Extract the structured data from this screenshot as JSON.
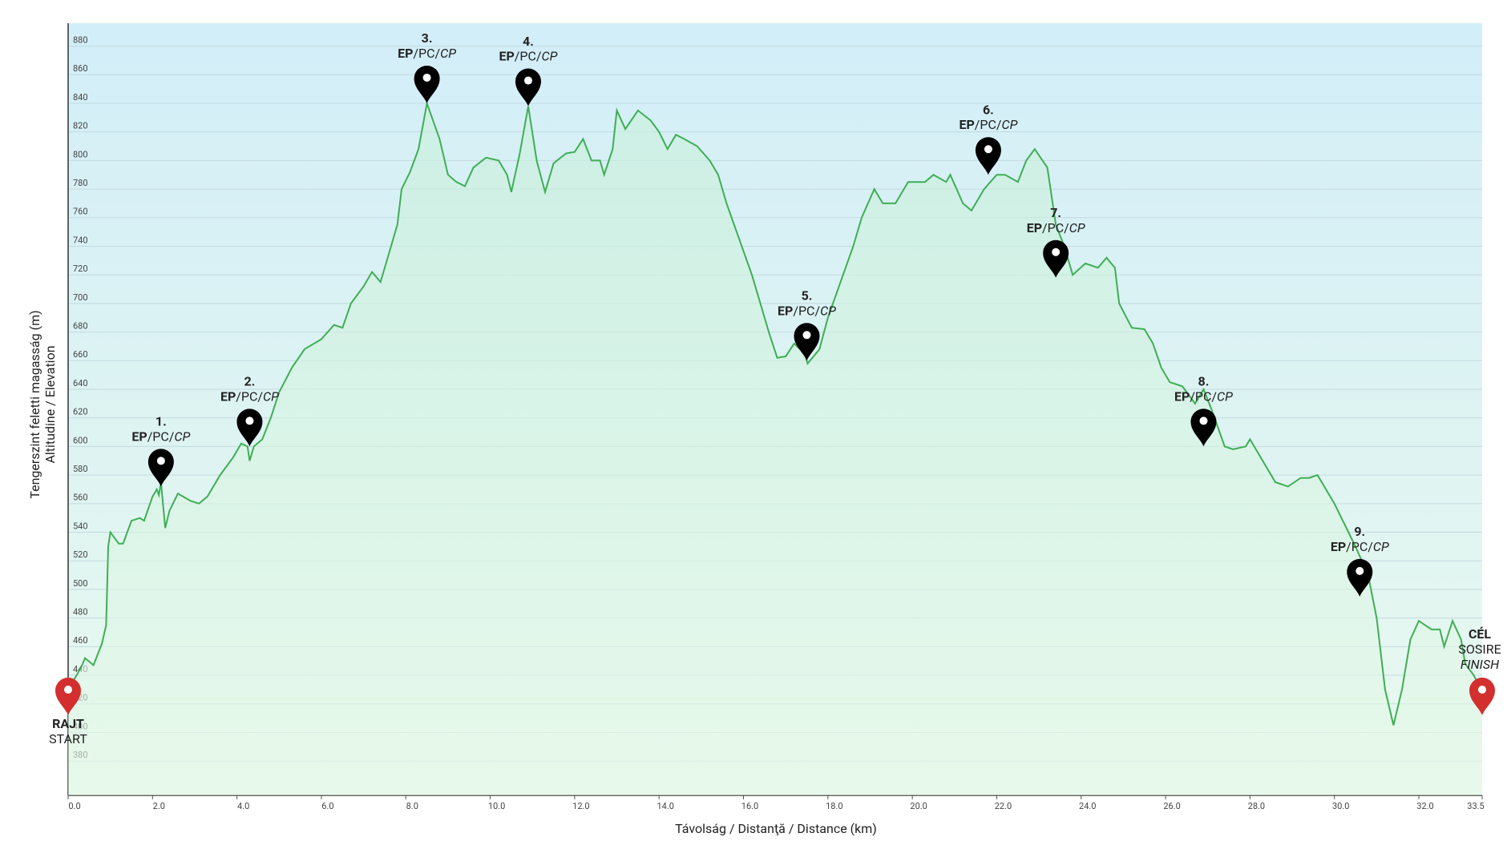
{
  "chart_data": {
    "type": "line",
    "x_label": "Távolság / Distanţă / Distance (km)",
    "y_label_1": "Tengerszint feletti magasság (m)",
    "y_label_2": "Altitudine / Elevation",
    "color": "#3fae55",
    "x": [
      0.0,
      0.3,
      0.4,
      0.6,
      0.8,
      0.9,
      0.95,
      1.0,
      1.2,
      1.3,
      1.5,
      1.7,
      1.8,
      2.0,
      2.1,
      2.15,
      2.2,
      2.3,
      2.4,
      2.6,
      2.9,
      3.1,
      3.3,
      3.6,
      3.9,
      4.1,
      4.25,
      4.3,
      4.4,
      4.6,
      4.8,
      5.0,
      5.3,
      5.6,
      6.0,
      6.3,
      6.5,
      6.7,
      7.0,
      7.2,
      7.4,
      7.6,
      7.8,
      7.9,
      8.1,
      8.3,
      8.5,
      8.8,
      9.0,
      9.2,
      9.4,
      9.6,
      9.9,
      10.2,
      10.4,
      10.5,
      10.7,
      10.9,
      11.1,
      11.3,
      11.5,
      11.8,
      12.0,
      12.2,
      12.4,
      12.6,
      12.7,
      12.9,
      13.0,
      13.2,
      13.5,
      13.8,
      14.0,
      14.2,
      14.4,
      14.6,
      14.9,
      15.2,
      15.4,
      15.6,
      15.9,
      16.2,
      16.4,
      16.6,
      16.8,
      17.0,
      17.2,
      17.45,
      17.52,
      17.8,
      18.0,
      18.3,
      18.6,
      18.8,
      19.1,
      19.3,
      19.6,
      19.9,
      20.3,
      20.5,
      20.8,
      20.9,
      21.2,
      21.4,
      21.7,
      22.0,
      22.2,
      22.5,
      22.7,
      22.9,
      23.2,
      23.4,
      23.6,
      23.8,
      24.1,
      24.4,
      24.6,
      24.8,
      24.9,
      25.2,
      25.5,
      25.7,
      25.9,
      26.1,
      26.4,
      26.7,
      26.9,
      27.1,
      27.4,
      27.6,
      27.9,
      28.0,
      28.3,
      28.6,
      28.9,
      29.2,
      29.4,
      29.6,
      29.8,
      30.0,
      30.3,
      30.5,
      30.8,
      31.0,
      31.2,
      31.4,
      31.6,
      31.8,
      32.0,
      32.3,
      32.5,
      32.6,
      32.8,
      33.0,
      33.1,
      33.3,
      33.5
    ],
    "values": [
      430,
      445,
      452,
      447,
      462,
      475,
      530,
      540,
      532,
      532,
      548,
      550,
      548,
      565,
      570,
      566,
      575,
      543,
      555,
      567,
      562,
      560,
      565,
      580,
      592,
      602,
      600,
      590,
      600,
      605,
      620,
      638,
      655,
      668,
      675,
      685,
      683,
      700,
      712,
      722,
      715,
      735,
      755,
      780,
      792,
      808,
      840,
      815,
      790,
      785,
      782,
      795,
      802,
      800,
      790,
      778,
      805,
      838,
      800,
      778,
      798,
      805,
      806,
      815,
      800,
      800,
      790,
      808,
      835,
      822,
      835,
      828,
      820,
      808,
      818,
      815,
      810,
      800,
      790,
      770,
      745,
      720,
      700,
      680,
      662,
      663,
      672,
      665,
      658,
      668,
      690,
      715,
      740,
      760,
      780,
      770,
      770,
      785,
      785,
      790,
      785,
      790,
      770,
      765,
      780,
      790,
      790,
      785,
      800,
      808,
      795,
      755,
      740,
      720,
      728,
      725,
      732,
      725,
      700,
      683,
      682,
      672,
      655,
      645,
      642,
      630,
      640,
      625,
      600,
      598,
      600,
      605,
      590,
      575,
      572,
      578,
      578,
      580,
      570,
      560,
      542,
      530,
      510,
      480,
      430,
      405,
      430,
      465,
      478,
      472,
      472,
      460,
      478,
      465,
      448,
      440,
      428
    ],
    "xlim": [
      0,
      33.5
    ],
    "ylim": [
      356,
      896
    ],
    "xticks": [
      {
        "value": 0,
        "label": "0.0"
      },
      {
        "value": 2,
        "label": "2.0"
      },
      {
        "value": 4,
        "label": "4.0"
      },
      {
        "value": 6,
        "label": "6.0"
      },
      {
        "value": 8,
        "label": "8.0"
      },
      {
        "value": 10,
        "label": "10.0"
      },
      {
        "value": 12,
        "label": "12.0"
      },
      {
        "value": 14,
        "label": "14.0"
      },
      {
        "value": 16,
        "label": "16.0"
      },
      {
        "value": 18,
        "label": "18.0"
      },
      {
        "value": 20,
        "label": "20.0"
      },
      {
        "value": 22,
        "label": "22.0"
      },
      {
        "value": 24,
        "label": "24.0"
      },
      {
        "value": 26,
        "label": "26.0"
      },
      {
        "value": 28,
        "label": "28.0"
      },
      {
        "value": 30,
        "label": "30.0"
      },
      {
        "value": 32,
        "label": "32.0"
      },
      {
        "value": 33.5,
        "label": "33.5"
      }
    ],
    "yticks": [
      380,
      400,
      420,
      440,
      460,
      480,
      500,
      520,
      540,
      560,
      580,
      600,
      620,
      640,
      660,
      680,
      700,
      720,
      740,
      760,
      780,
      800,
      820,
      840,
      860,
      880
    ],
    "grid": true,
    "checkpoint_text": {
      "ep": "EP",
      "pc": "/PC/",
      "cp": "CP"
    },
    "checkpoints": [
      {
        "label": "1.",
        "x": 2.2,
        "y": 572
      },
      {
        "label": "2.",
        "x": 4.3,
        "y": 600
      },
      {
        "label": "3.",
        "x": 8.5,
        "y": 840
      },
      {
        "label": "4.",
        "x": 10.9,
        "y": 838
      },
      {
        "label": "5.",
        "x": 17.5,
        "y": 660
      },
      {
        "label": "6.",
        "x": 21.8,
        "y": 790
      },
      {
        "label": "7.",
        "x": 23.4,
        "y": 718
      },
      {
        "label": "8.",
        "x": 26.9,
        "y": 600
      },
      {
        "label": "9.",
        "x": 30.6,
        "y": 495
      }
    ],
    "start": {
      "label_1": "RAJT",
      "label_2": "START",
      "x": 0,
      "y": 412
    },
    "finish": {
      "label_1": "CÉL",
      "label_2": "SOSIRE",
      "label_3": "FINISH",
      "x": 33.5,
      "y": 412
    }
  }
}
